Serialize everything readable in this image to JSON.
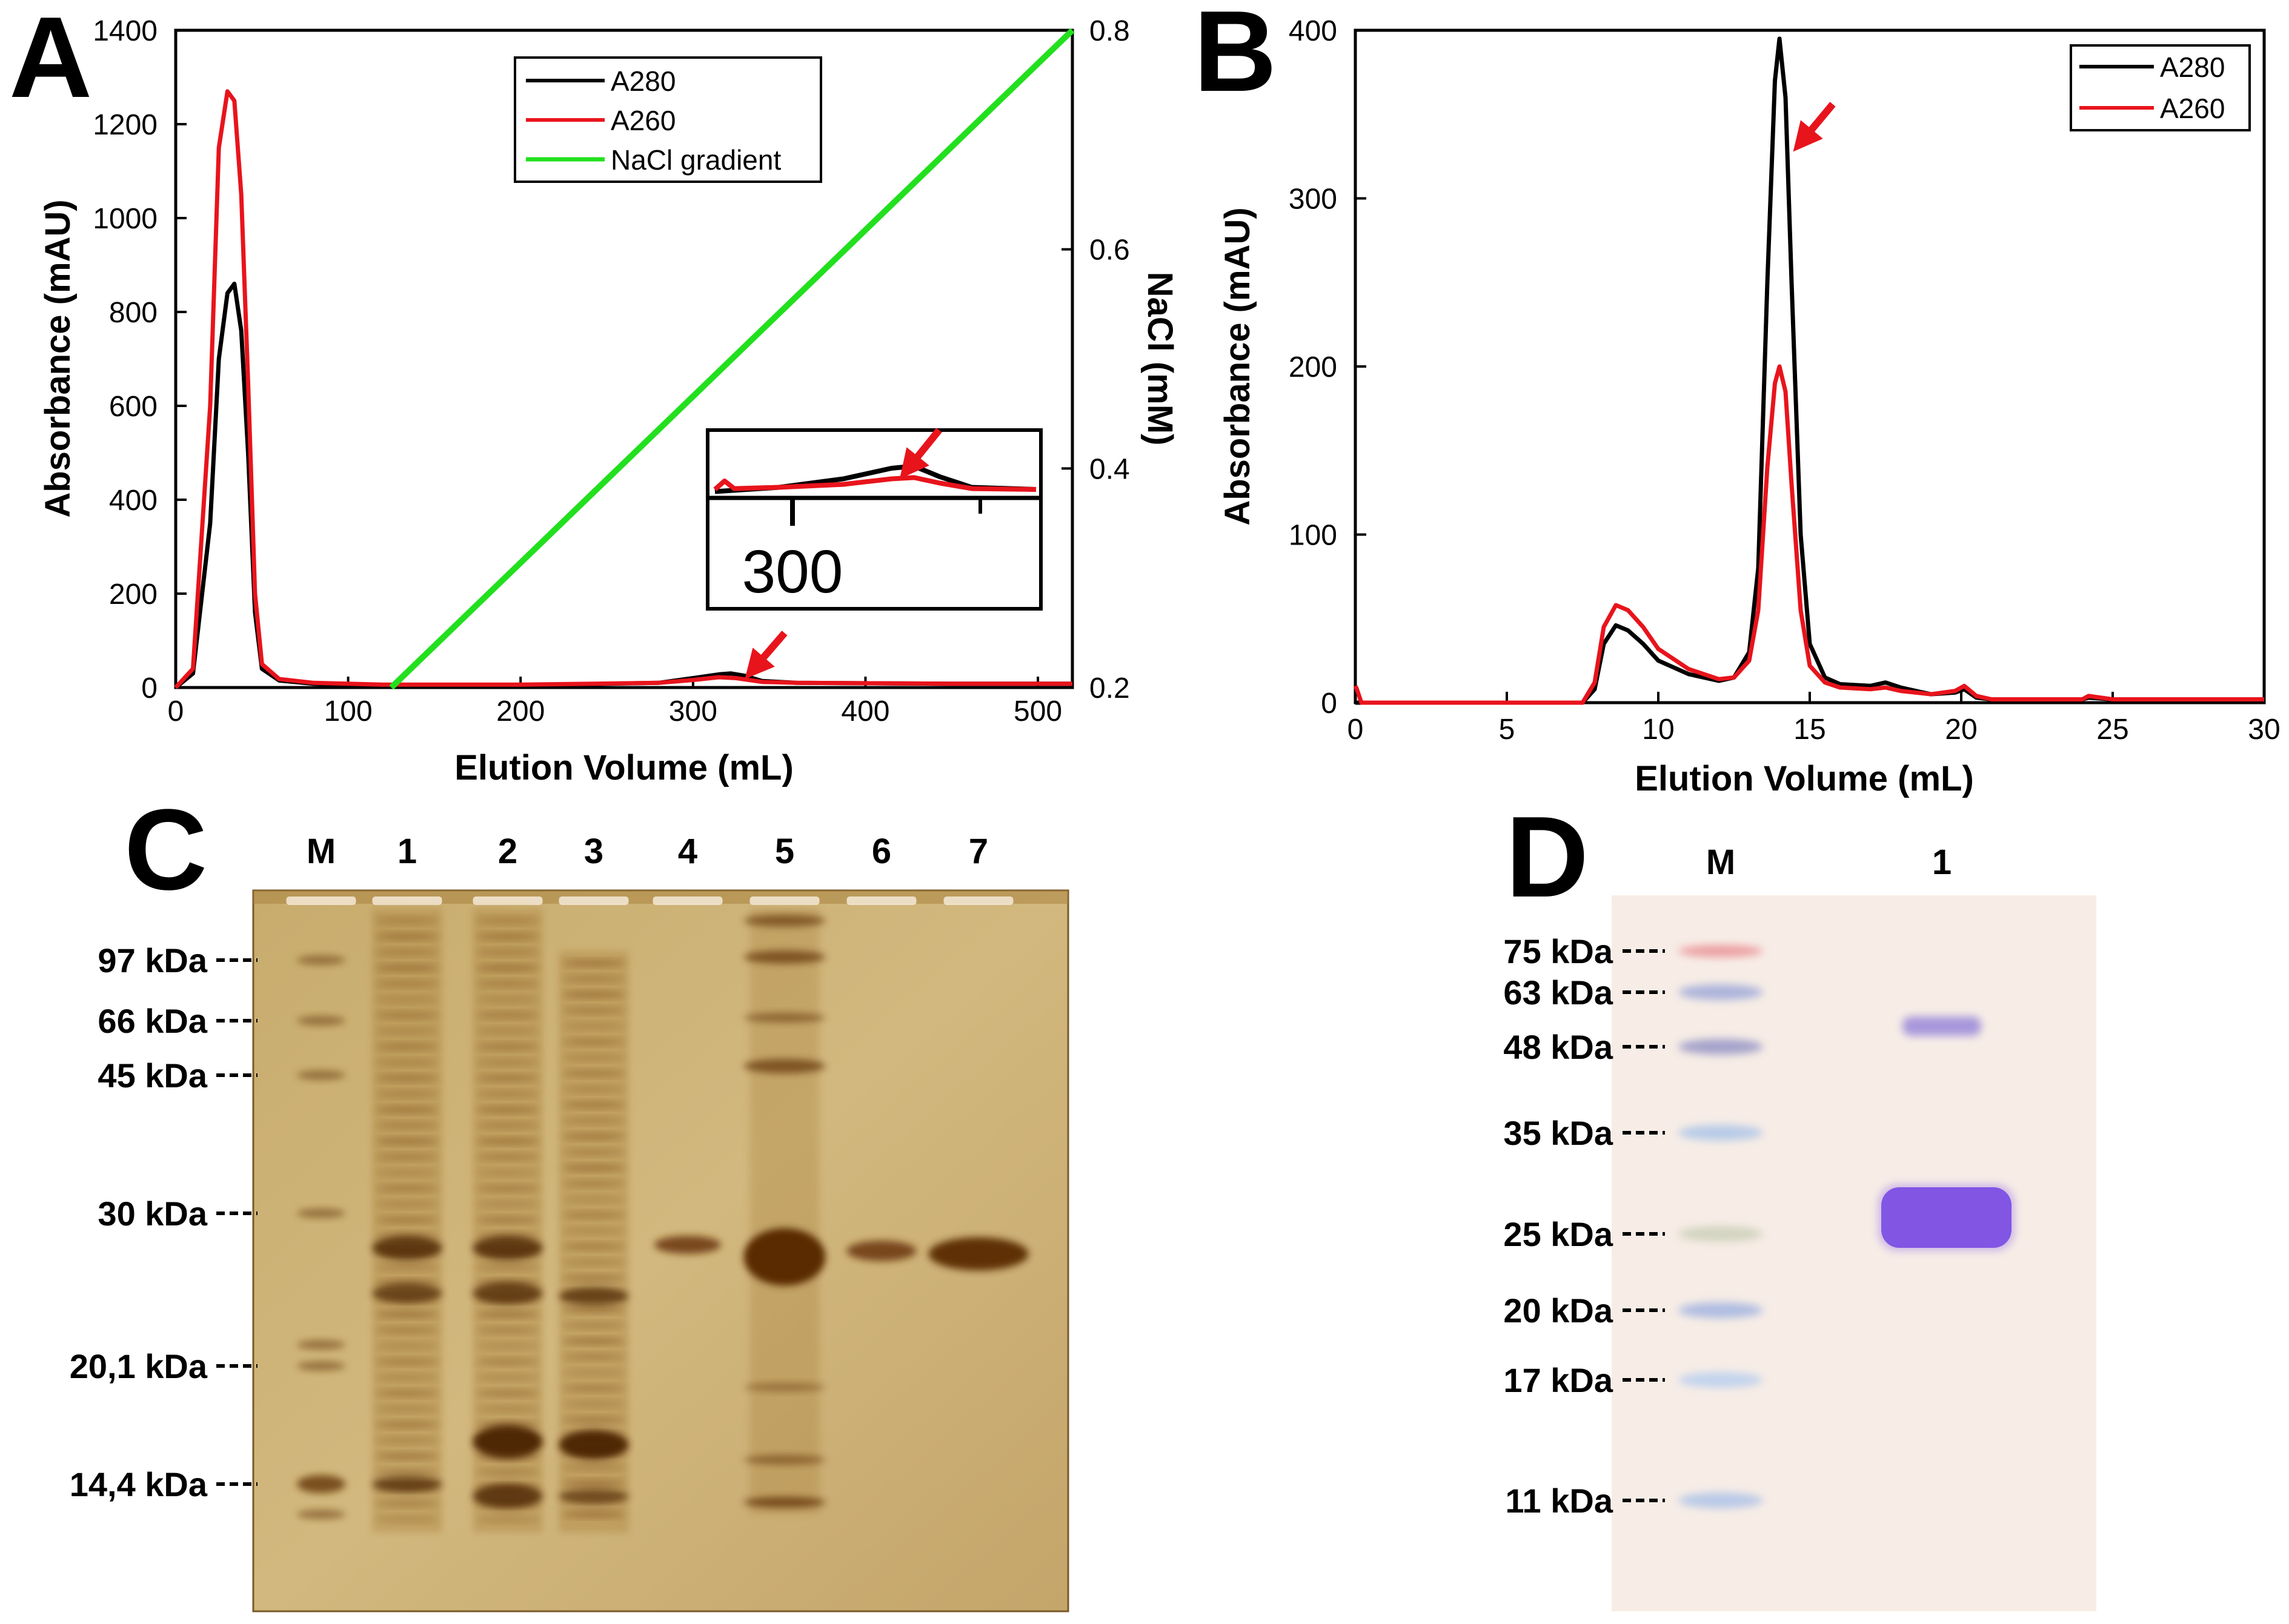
{
  "chart_data": [
    {
      "panel": "A",
      "type": "line",
      "xlabel": "Elution Volume (mL)",
      "ylabel": "Absorbance (mAU)",
      "ylabel_right": "NaCl (mM)",
      "xlim": [
        0,
        520
      ],
      "ylim": [
        0,
        1400
      ],
      "ylim_right": [
        0.2,
        0.8
      ],
      "x_ticks": [
        "0",
        "100",
        "200",
        "300",
        "400",
        "500"
      ],
      "y_ticks": [
        "0",
        "200",
        "400",
        "600",
        "800",
        "1000",
        "1200",
        "1400"
      ],
      "y_right_ticks": [
        "0.2",
        "0.4",
        "0.6",
        "0.8"
      ],
      "legend": [
        "A280",
        "A260",
        "NaCl gradient"
      ],
      "series": [
        {
          "name": "A280",
          "color": "#000000",
          "x": [
            0,
            10,
            20,
            25,
            30,
            34,
            38,
            42,
            46,
            50,
            60,
            80,
            120,
            200,
            280,
            300,
            315,
            322,
            330,
            340,
            360,
            450,
            520
          ],
          "y": [
            0,
            30,
            350,
            700,
            840,
            860,
            760,
            500,
            160,
            40,
            15,
            8,
            5,
            5,
            10,
            20,
            28,
            30,
            25,
            14,
            10,
            8,
            8
          ]
        },
        {
          "name": "A260",
          "color": "#e8141c",
          "x": [
            0,
            10,
            20,
            25,
            30,
            34,
            38,
            42,
            46,
            50,
            60,
            80,
            120,
            200,
            280,
            300,
            315,
            325,
            340,
            360,
            450,
            520
          ],
          "y": [
            0,
            40,
            600,
            1150,
            1270,
            1250,
            1050,
            650,
            200,
            50,
            18,
            10,
            6,
            6,
            10,
            16,
            22,
            20,
            12,
            10,
            8,
            8
          ]
        },
        {
          "name": "NaCl gradient",
          "color": "#22e01e",
          "axis": "right",
          "x": [
            125,
            520
          ],
          "y": [
            0.2,
            0.8
          ]
        }
      ],
      "inset": {
        "label": "300",
        "series": [
          {
            "name": "A280",
            "color": "#000000",
            "t": [
              0,
              0.2,
              0.4,
              0.55,
              0.62,
              0.7,
              0.8,
              1
            ],
            "v": [
              0.05,
              0.15,
              0.35,
              0.6,
              0.65,
              0.4,
              0.15,
              0.1
            ]
          },
          {
            "name": "A260",
            "color": "#e8141c",
            "t": [
              0,
              0.03,
              0.06,
              0.2,
              0.4,
              0.55,
              0.62,
              0.7,
              0.8,
              1
            ],
            "v": [
              0.1,
              0.3,
              0.12,
              0.15,
              0.22,
              0.35,
              0.38,
              0.25,
              0.12,
              0.1
            ]
          }
        ]
      }
    },
    {
      "panel": "B",
      "type": "line",
      "xlabel": "Elution Volume (mL)",
      "ylabel": "Absorbance (mAU)",
      "xlim": [
        0,
        30
      ],
      "ylim": [
        0,
        400
      ],
      "x_ticks": [
        "0",
        "5",
        "10",
        "15",
        "20",
        "25",
        "30"
      ],
      "y_ticks": [
        "0",
        "100",
        "200",
        "300",
        "400"
      ],
      "legend": [
        "A280",
        "A260"
      ],
      "series": [
        {
          "name": "A280",
          "color": "#000000",
          "x": [
            0,
            7.5,
            7.9,
            8.2,
            8.6,
            9.0,
            9.5,
            10.0,
            11.0,
            12.0,
            12.5,
            13.0,
            13.3,
            13.6,
            13.85,
            14.0,
            14.2,
            14.4,
            14.7,
            15.0,
            15.5,
            16.0,
            17.0,
            17.5,
            18.0,
            19.0,
            19.8,
            20.1,
            20.5,
            21.0,
            22.0,
            24.0,
            24.2,
            25.0,
            27.0,
            30.0
          ],
          "y": [
            0,
            0,
            8,
            35,
            46,
            43,
            35,
            25,
            17,
            13,
            15,
            30,
            80,
            250,
            370,
            395,
            360,
            250,
            100,
            35,
            15,
            11,
            10,
            12,
            9,
            5,
            6,
            8,
            3,
            2,
            2,
            2,
            3,
            2,
            2,
            1
          ]
        },
        {
          "name": "A260",
          "color": "#e8141c",
          "x": [
            0,
            0.05,
            0.2,
            7.5,
            7.9,
            8.2,
            8.6,
            9.0,
            9.5,
            10.0,
            11.0,
            12.0,
            12.5,
            13.0,
            13.3,
            13.6,
            13.85,
            14.0,
            14.2,
            14.4,
            14.7,
            15.0,
            15.5,
            16.0,
            17.0,
            17.5,
            18.0,
            19.0,
            19.8,
            20.1,
            20.5,
            21.0,
            22.0,
            24.0,
            24.2,
            25.0,
            27.0,
            30.0
          ],
          "y": [
            10,
            8,
            0,
            0,
            12,
            45,
            58,
            55,
            45,
            32,
            20,
            14,
            15,
            25,
            55,
            140,
            190,
            200,
            185,
            130,
            55,
            22,
            12,
            9,
            8,
            9,
            7,
            5,
            7,
            10,
            4,
            2,
            2,
            2,
            4,
            2,
            2,
            2
          ]
        }
      ]
    }
  ],
  "panels": {
    "A": {
      "letter": "A"
    },
    "B": {
      "letter": "B"
    },
    "C": {
      "letter": "C",
      "lanes": [
        "M",
        "1",
        "2",
        "3",
        "4",
        "5",
        "6",
        "7"
      ],
      "markers": [
        "97 kDa",
        "66 kDa",
        "45 kDa",
        "30 kDa",
        "20,1 kDa",
        "14,4 kDa"
      ]
    },
    "D": {
      "letter": "D",
      "lanes": [
        "M",
        "1"
      ],
      "markers": [
        "75 kDa",
        "63 kDa",
        "48 kDa",
        "35 kDa",
        "25 kDa",
        "20 kDa",
        "17 kDa",
        "11 kDa"
      ]
    }
  }
}
